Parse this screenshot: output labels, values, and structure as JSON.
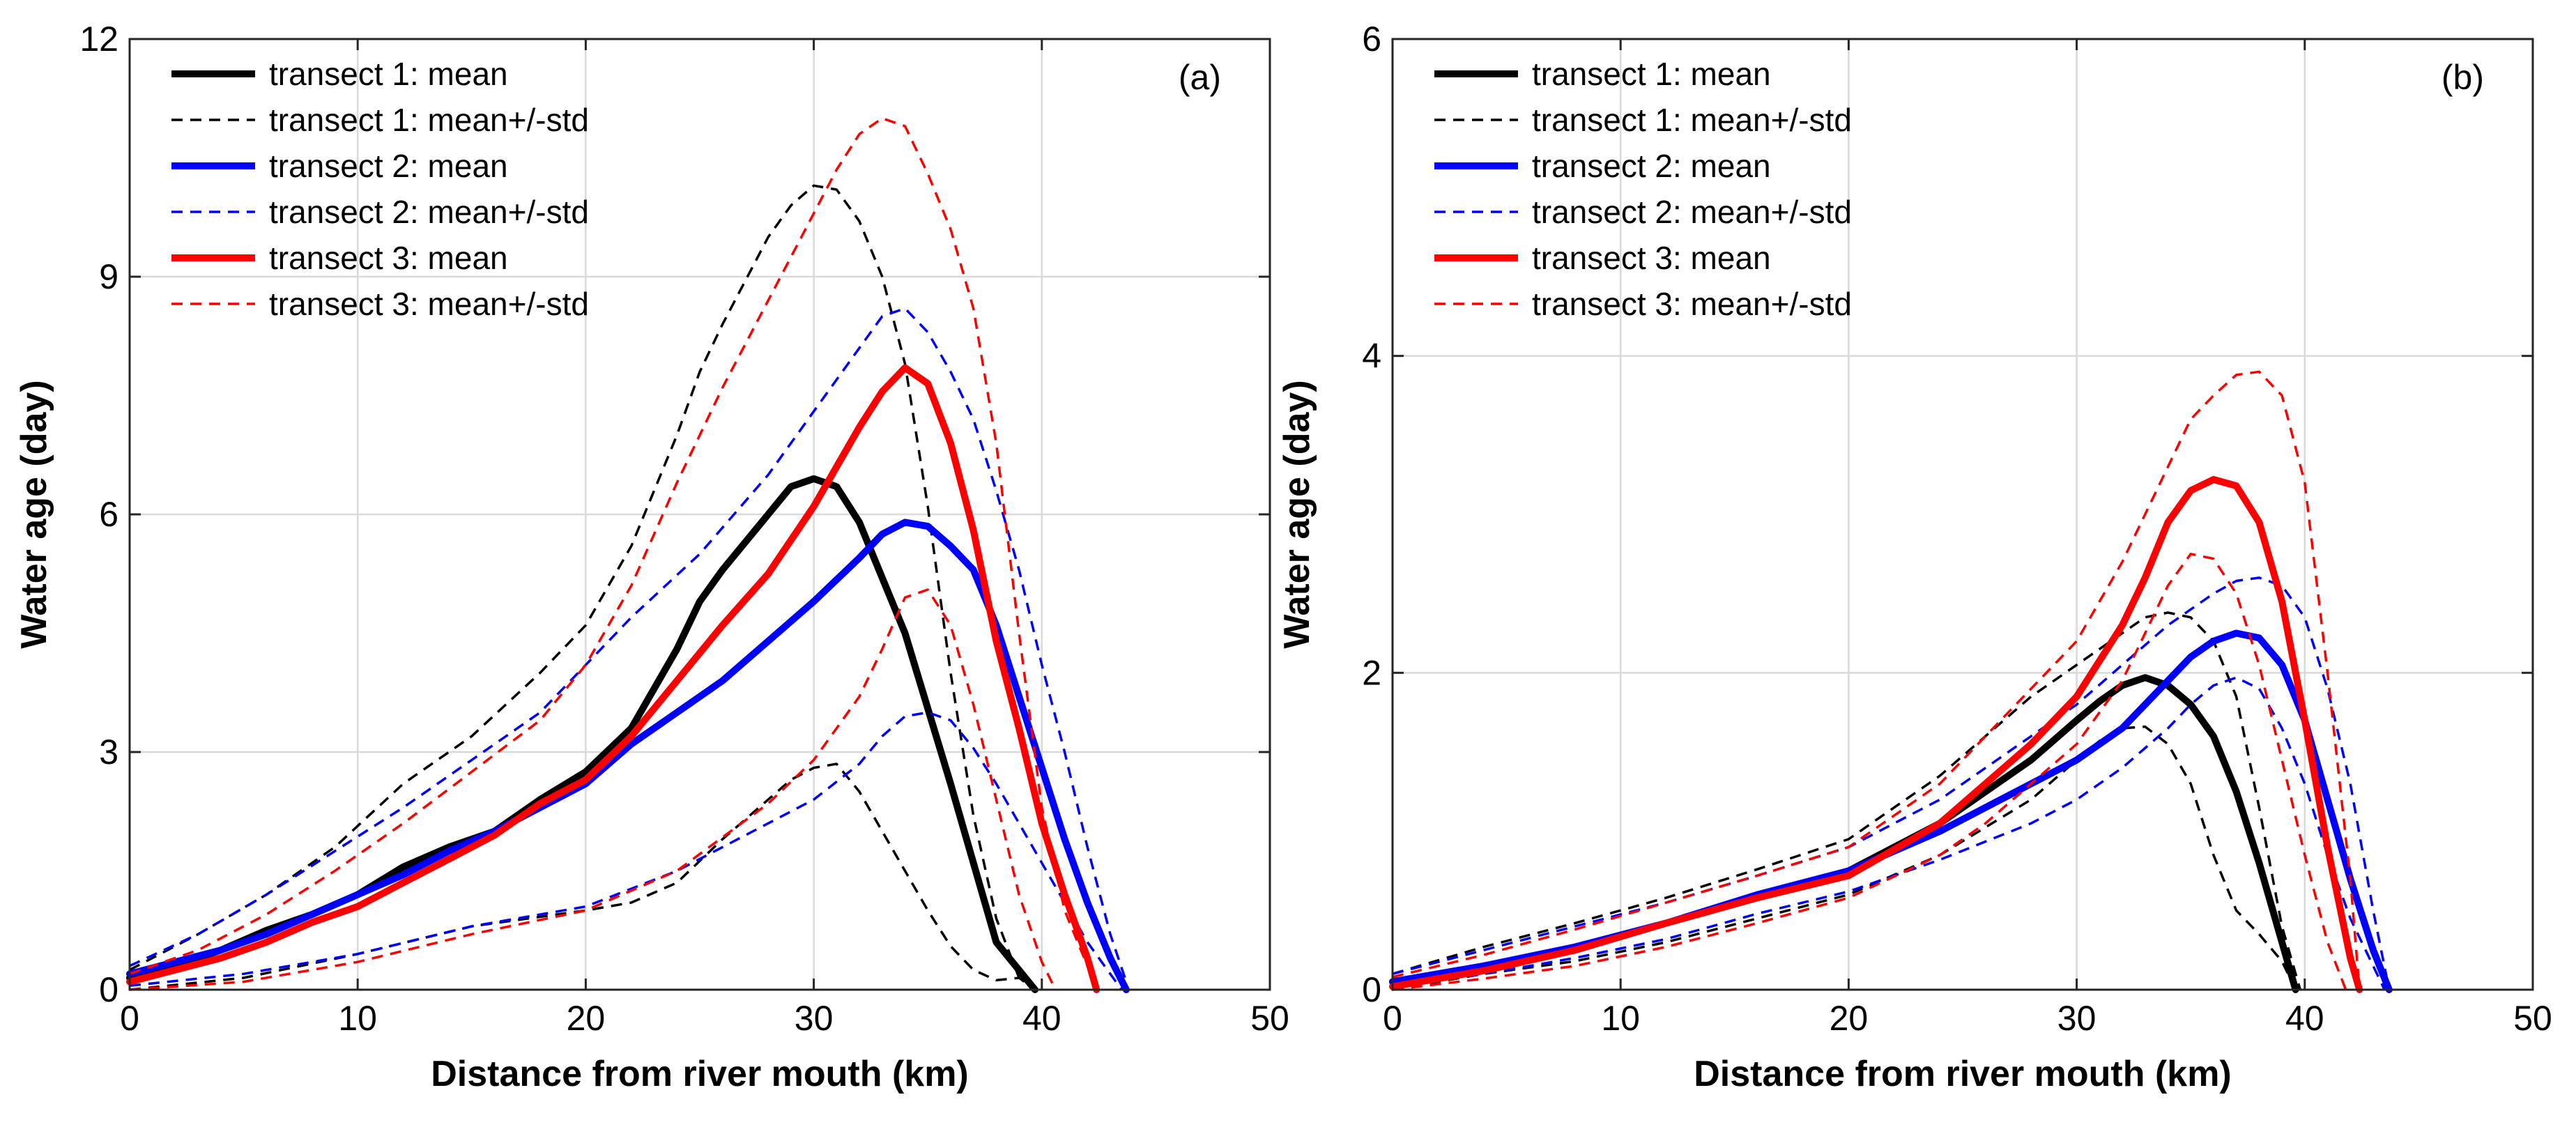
{
  "chart_data": [
    {
      "type": "line",
      "panel_label": "(a)",
      "xlabel": "Distance from river mouth (km)",
      "ylabel": "Water age (day)",
      "xlim": [
        0,
        50
      ],
      "ylim": [
        0,
        12
      ],
      "xticks": [
        "0",
        "10",
        "20",
        "30",
        "40",
        "50"
      ],
      "yticks": [
        "0",
        "3",
        "6",
        "9",
        "12"
      ],
      "grid": true,
      "legend_position": "top-left",
      "series": [
        {
          "name": "transect 1: mean",
          "legend": true,
          "color": "#000000",
          "style": "solid",
          "x": [
            0,
            2,
            4,
            6,
            8,
            10,
            12,
            14,
            16,
            18,
            20,
            22,
            24,
            25,
            26,
            28,
            29,
            30,
            31,
            32,
            34,
            36,
            38,
            39.7
          ],
          "y": [
            0.15,
            0.3,
            0.5,
            0.75,
            0.95,
            1.2,
            1.55,
            1.8,
            2.0,
            2.4,
            2.75,
            3.3,
            4.3,
            4.9,
            5.3,
            6.0,
            6.35,
            6.45,
            6.35,
            5.9,
            4.5,
            2.6,
            0.6,
            0.0
          ]
        },
        {
          "name": "transect 1: mean+/-std",
          "legend": true,
          "color": "#000000",
          "style": "dashed",
          "x": [
            0,
            3,
            6,
            9,
            12,
            15,
            18,
            20,
            22,
            24,
            25,
            26,
            28,
            29,
            30,
            31,
            32,
            33,
            34,
            35,
            36,
            37,
            38,
            39
          ],
          "y": [
            0.25,
            0.7,
            1.2,
            1.8,
            2.6,
            3.2,
            4.0,
            4.6,
            5.6,
            7.0,
            7.8,
            8.4,
            9.5,
            9.9,
            10.15,
            10.1,
            9.7,
            9.0,
            7.9,
            6.1,
            4.0,
            2.2,
            0.9,
            0.15
          ]
        },
        {
          "name": "transect 1: mean-std",
          "legend": false,
          "color": "#000000",
          "style": "dashed",
          "x": [
            0,
            5,
            10,
            15,
            20,
            22,
            24,
            26,
            28,
            29,
            30,
            31,
            32,
            33,
            34,
            35,
            36,
            37,
            38,
            39,
            39.7
          ],
          "y": [
            0.0,
            0.15,
            0.45,
            0.8,
            1.0,
            1.1,
            1.35,
            1.9,
            2.4,
            2.65,
            2.8,
            2.85,
            2.5,
            2.0,
            1.5,
            1.0,
            0.55,
            0.25,
            0.12,
            0.15,
            0.0
          ]
        },
        {
          "name": "transect 2: mean",
          "legend": true,
          "color": "#0000ff",
          "style": "solid",
          "x": [
            0,
            2,
            4,
            6,
            8,
            10,
            12,
            14,
            16,
            18,
            20,
            22,
            24,
            26,
            28,
            30,
            32,
            33,
            34,
            35,
            36,
            37,
            38,
            39,
            40,
            41,
            42,
            43,
            43.7
          ],
          "y": [
            0.2,
            0.35,
            0.5,
            0.7,
            0.95,
            1.2,
            1.45,
            1.75,
            2.0,
            2.3,
            2.6,
            3.1,
            3.5,
            3.9,
            4.4,
            4.9,
            5.45,
            5.75,
            5.9,
            5.85,
            5.6,
            5.3,
            4.6,
            3.7,
            2.8,
            1.9,
            1.1,
            0.4,
            0.0
          ]
        },
        {
          "name": "transect 2: mean+/-std",
          "legend": true,
          "color": "#0000ff",
          "style": "dashed",
          "x": [
            0,
            3,
            6,
            9,
            12,
            15,
            18,
            20,
            22,
            25,
            28,
            30,
            32,
            33,
            34,
            35,
            36,
            37,
            38,
            39,
            40,
            41,
            42,
            43,
            43.7
          ],
          "y": [
            0.3,
            0.7,
            1.2,
            1.75,
            2.3,
            2.9,
            3.5,
            4.1,
            4.7,
            5.5,
            6.5,
            7.3,
            8.1,
            8.5,
            8.6,
            8.3,
            7.8,
            7.2,
            6.3,
            5.3,
            4.1,
            3.0,
            1.8,
            0.7,
            0.1
          ]
        },
        {
          "name": "transect 2: mean-std",
          "legend": false,
          "color": "#0000ff",
          "style": "dashed",
          "x": [
            0,
            5,
            10,
            15,
            20,
            24,
            28,
            30,
            32,
            33,
            34,
            35,
            36,
            37,
            38,
            39,
            40,
            41,
            42,
            43,
            43.5
          ],
          "y": [
            0.05,
            0.2,
            0.45,
            0.8,
            1.05,
            1.5,
            2.1,
            2.4,
            2.85,
            3.2,
            3.45,
            3.5,
            3.4,
            3.05,
            2.6,
            2.1,
            1.6,
            1.1,
            0.6,
            0.2,
            0.0
          ]
        },
        {
          "name": "transect 3: mean",
          "legend": true,
          "color": "#ff0000",
          "style": "solid",
          "x": [
            0,
            2,
            4,
            6,
            8,
            10,
            12,
            14,
            16,
            18,
            20,
            22,
            24,
            26,
            28,
            30,
            32,
            33,
            34,
            35,
            36,
            37,
            38,
            39,
            40,
            41,
            42,
            42.4
          ],
          "y": [
            0.1,
            0.25,
            0.4,
            0.6,
            0.85,
            1.05,
            1.35,
            1.65,
            1.95,
            2.35,
            2.65,
            3.2,
            3.9,
            4.6,
            5.25,
            6.1,
            7.1,
            7.55,
            7.85,
            7.65,
            6.9,
            5.8,
            4.4,
            3.3,
            2.1,
            1.2,
            0.4,
            0.0
          ]
        },
        {
          "name": "transect 3: mean+/-std",
          "legend": true,
          "color": "#ff0000",
          "style": "dashed",
          "x": [
            0,
            3,
            6,
            9,
            12,
            15,
            18,
            20,
            22,
            24,
            26,
            28,
            30,
            31,
            32,
            33,
            34,
            35,
            36,
            37,
            38,
            39,
            40,
            41,
            42,
            42.4
          ],
          "y": [
            0.2,
            0.5,
            0.95,
            1.5,
            2.1,
            2.75,
            3.4,
            4.1,
            5.1,
            6.4,
            7.6,
            8.7,
            9.8,
            10.35,
            10.8,
            11.0,
            10.9,
            10.3,
            9.6,
            8.6,
            6.9,
            4.5,
            2.3,
            1.0,
            0.3,
            0.0
          ]
        },
        {
          "name": "transect 3: mean-std",
          "legend": false,
          "color": "#ff0000",
          "style": "dashed",
          "x": [
            0,
            5,
            10,
            15,
            20,
            24,
            28,
            30,
            32,
            33,
            34,
            35,
            36,
            37,
            38,
            39,
            40,
            40.6
          ],
          "y": [
            0.0,
            0.1,
            0.35,
            0.7,
            1.0,
            1.5,
            2.35,
            2.9,
            3.7,
            4.3,
            4.95,
            5.05,
            4.6,
            3.6,
            2.4,
            1.2,
            0.35,
            0.0
          ]
        }
      ]
    },
    {
      "type": "line",
      "panel_label": "(b)",
      "xlabel": "Distance from river mouth (km)",
      "ylabel": "Water age (day)",
      "xlim": [
        0,
        50
      ],
      "ylim": [
        0,
        6
      ],
      "xticks": [
        "0",
        "10",
        "20",
        "30",
        "40",
        "50"
      ],
      "yticks": [
        "0",
        "2",
        "4",
        "6"
      ],
      "grid": true,
      "legend_position": "top-left",
      "series": [
        {
          "name": "transect 1: mean",
          "legend": true,
          "color": "#000000",
          "style": "solid",
          "x": [
            0,
            4,
            8,
            12,
            16,
            20,
            24,
            28,
            30,
            31,
            32,
            33,
            34,
            35,
            36,
            37,
            38,
            39,
            39.6
          ],
          "y": [
            0.05,
            0.15,
            0.25,
            0.42,
            0.58,
            0.75,
            1.05,
            1.45,
            1.7,
            1.82,
            1.92,
            1.97,
            1.92,
            1.8,
            1.6,
            1.25,
            0.8,
            0.3,
            0.0
          ]
        },
        {
          "name": "transect 1: mean+/-std",
          "legend": true,
          "color": "#000000",
          "style": "dashed",
          "x": [
            0,
            4,
            8,
            12,
            16,
            20,
            24,
            28,
            30,
            32,
            33,
            34,
            35,
            36,
            37,
            38,
            39,
            39.8
          ],
          "y": [
            0.1,
            0.27,
            0.42,
            0.58,
            0.76,
            0.95,
            1.35,
            1.85,
            2.05,
            2.25,
            2.35,
            2.38,
            2.35,
            2.2,
            1.85,
            1.15,
            0.4,
            0.0
          ]
        },
        {
          "name": "transect 1: mean-std",
          "legend": false,
          "color": "#000000",
          "style": "dashed",
          "x": [
            0,
            4,
            8,
            12,
            16,
            20,
            24,
            28,
            30,
            31,
            32,
            33,
            34,
            35,
            36,
            37,
            38,
            39,
            39.6
          ],
          "y": [
            0.0,
            0.1,
            0.18,
            0.3,
            0.45,
            0.6,
            0.85,
            1.2,
            1.45,
            1.57,
            1.65,
            1.66,
            1.55,
            1.3,
            0.85,
            0.5,
            0.35,
            0.18,
            0.0
          ]
        },
        {
          "name": "transect 2: mean",
          "legend": true,
          "color": "#0000ff",
          "style": "solid",
          "x": [
            0,
            4,
            8,
            12,
            16,
            20,
            24,
            28,
            30,
            32,
            34,
            35,
            36,
            37,
            38,
            39,
            40,
            41,
            42,
            43,
            43.7
          ],
          "y": [
            0.05,
            0.15,
            0.27,
            0.42,
            0.6,
            0.75,
            1.0,
            1.3,
            1.45,
            1.65,
            1.95,
            2.1,
            2.2,
            2.25,
            2.22,
            2.05,
            1.7,
            1.2,
            0.7,
            0.25,
            0.0
          ]
        },
        {
          "name": "transect 2: mean+/-std",
          "legend": true,
          "color": "#0000ff",
          "style": "dashed",
          "x": [
            0,
            4,
            8,
            12,
            16,
            20,
            24,
            28,
            30,
            32,
            34,
            36,
            37,
            38,
            39,
            40,
            41,
            42,
            43,
            43.7
          ],
          "y": [
            0.1,
            0.25,
            0.4,
            0.55,
            0.72,
            0.9,
            1.2,
            1.6,
            1.8,
            2.05,
            2.3,
            2.5,
            2.58,
            2.6,
            2.55,
            2.35,
            1.9,
            1.3,
            0.5,
            0.0
          ]
        },
        {
          "name": "transect 2: mean-std",
          "legend": false,
          "color": "#0000ff",
          "style": "dashed",
          "x": [
            0,
            4,
            8,
            12,
            16,
            20,
            24,
            28,
            30,
            32,
            34,
            35,
            36,
            37,
            38,
            39,
            40,
            41,
            42,
            43,
            43.5
          ],
          "y": [
            0.02,
            0.1,
            0.2,
            0.32,
            0.48,
            0.62,
            0.82,
            1.05,
            1.2,
            1.4,
            1.65,
            1.8,
            1.92,
            1.97,
            1.9,
            1.65,
            1.3,
            0.85,
            0.45,
            0.15,
            0.0
          ]
        },
        {
          "name": "transect 3: mean",
          "legend": true,
          "color": "#ff0000",
          "style": "solid",
          "x": [
            0,
            4,
            8,
            12,
            16,
            20,
            24,
            26,
            28,
            30,
            32,
            33,
            34,
            35,
            36,
            37,
            38,
            39,
            40,
            41,
            42,
            42.4
          ],
          "y": [
            0.02,
            0.12,
            0.25,
            0.42,
            0.58,
            0.72,
            1.05,
            1.3,
            1.55,
            1.85,
            2.3,
            2.6,
            2.95,
            3.15,
            3.22,
            3.18,
            2.95,
            2.45,
            1.7,
            0.9,
            0.2,
            0.0
          ]
        },
        {
          "name": "transect 3: mean+/-std",
          "legend": true,
          "color": "#ff0000",
          "style": "dashed",
          "x": [
            0,
            4,
            8,
            12,
            16,
            20,
            24,
            26,
            28,
            30,
            32,
            34,
            35,
            36,
            37,
            38,
            39,
            40,
            41,
            42,
            42.4
          ],
          "y": [
            0.08,
            0.22,
            0.38,
            0.55,
            0.72,
            0.9,
            1.3,
            1.6,
            1.9,
            2.2,
            2.7,
            3.3,
            3.6,
            3.75,
            3.88,
            3.9,
            3.75,
            3.2,
            2.0,
            0.7,
            0.0
          ]
        },
        {
          "name": "transect 3: mean-std",
          "legend": false,
          "color": "#ff0000",
          "style": "dashed",
          "x": [
            0,
            4,
            8,
            12,
            16,
            20,
            24,
            26,
            28,
            30,
            32,
            33,
            34,
            35,
            36,
            37,
            38,
            39,
            40,
            41,
            41.8
          ],
          "y": [
            0.0,
            0.07,
            0.15,
            0.27,
            0.42,
            0.58,
            0.85,
            1.05,
            1.3,
            1.55,
            1.95,
            2.25,
            2.55,
            2.75,
            2.72,
            2.5,
            2.05,
            1.45,
            0.85,
            0.3,
            0.0
          ]
        }
      ]
    }
  ]
}
